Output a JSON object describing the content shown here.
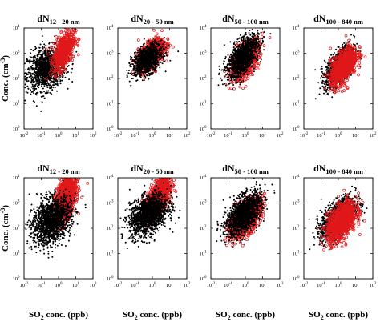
{
  "figure": {
    "ylabel_prefix": "Conc. (cm",
    "ylabel_exponent": "-3",
    "ylabel_suffix": ")",
    "xlabel_prefix": "SO",
    "xlabel_subscript": "2",
    "xlabel_suffix": " conc. (ppb)"
  },
  "colors": {
    "series_red": "#e0191b",
    "series_black": "#000000"
  },
  "chart_data": [
    {
      "type": "scatter",
      "row": 0,
      "title_main": "dN",
      "title_sub": "12 - 20 nm",
      "x_ticks": [
        "10",
        "10",
        "10",
        "10",
        "10"
      ],
      "x_tick_exponents": [
        "-2",
        "-1",
        "0",
        "1",
        "2"
      ],
      "y_ticks": [
        "10",
        "10",
        "10",
        "10",
        "10"
      ],
      "y_tick_exponents": [
        "0",
        "1",
        "2",
        "3",
        "4"
      ],
      "x_scale": "log",
      "y_scale": "log",
      "xlim": [
        0.01,
        100
      ],
      "ylim": [
        1,
        10000
      ],
      "series": [
        {
          "color": "#000000",
          "center": [
            0.2,
            250
          ],
          "spread": [
            0.55,
            0.42
          ],
          "corr": 0.25,
          "count": 1300
        },
        {
          "color": "#e0191b",
          "center": [
            2.0,
            1300
          ],
          "spread": [
            0.3,
            0.38
          ],
          "corr": 0.5,
          "count": 650
        }
      ]
    },
    {
      "type": "scatter",
      "row": 0,
      "title_main": "dN",
      "title_sub": "20 - 50 nm",
      "x_ticks": [
        "10",
        "10",
        "10",
        "10",
        "10"
      ],
      "x_tick_exponents": [
        "-2",
        "-1",
        "0",
        "1",
        "2"
      ],
      "y_ticks": [
        "10",
        "10",
        "10",
        "10",
        "10"
      ],
      "y_tick_exponents": [
        "0",
        "1",
        "2",
        "3",
        "4"
      ],
      "x_scale": "log",
      "y_scale": "log",
      "xlim": [
        0.01,
        100
      ],
      "ylim": [
        1,
        10000
      ],
      "series": [
        {
          "color": "#e0191b",
          "center": [
            0.9,
            900
          ],
          "spread": [
            0.38,
            0.3
          ],
          "corr": 0.55,
          "count": 900
        },
        {
          "color": "#000000",
          "center": [
            0.5,
            550
          ],
          "spread": [
            0.42,
            0.3
          ],
          "corr": 0.45,
          "count": 1100
        }
      ]
    },
    {
      "type": "scatter",
      "row": 0,
      "title_main": "dN",
      "title_sub": "50 - 100 nm",
      "x_ticks": [
        "10",
        "10",
        "10",
        "10",
        "10"
      ],
      "x_tick_exponents": [
        "-2",
        "-1",
        "0",
        "1",
        "2"
      ],
      "y_ticks": [
        "10",
        "10",
        "10",
        "10",
        "10"
      ],
      "y_tick_exponents": [
        "0",
        "1",
        "2",
        "3",
        "4"
      ],
      "x_scale": "log",
      "y_scale": "log",
      "xlim": [
        0.01,
        100
      ],
      "ylim": [
        1,
        10000
      ],
      "series": [
        {
          "color": "#e0191b",
          "center": [
            1.0,
            500
          ],
          "spread": [
            0.4,
            0.38
          ],
          "corr": 0.6,
          "count": 800
        },
        {
          "color": "#000000",
          "center": [
            0.7,
            700
          ],
          "spread": [
            0.45,
            0.42
          ],
          "corr": 0.6,
          "count": 1300
        }
      ]
    },
    {
      "type": "scatter",
      "row": 0,
      "title_main": "dN",
      "title_sub": "100 - 840 nm",
      "x_ticks": [
        "10",
        "10",
        "10",
        "10",
        "10"
      ],
      "x_tick_exponents": [
        "-2",
        "-1",
        "0",
        "1",
        "2"
      ],
      "y_ticks": [
        "10",
        "10",
        "10",
        "10",
        "10"
      ],
      "y_tick_exponents": [
        "0",
        "1",
        "2",
        "3",
        "4"
      ],
      "x_scale": "log",
      "y_scale": "log",
      "xlim": [
        0.01,
        100
      ],
      "ylim": [
        1,
        10000
      ],
      "series": [
        {
          "color": "#000000",
          "center": [
            1.2,
            300
          ],
          "spread": [
            0.42,
            0.4
          ],
          "corr": 0.6,
          "count": 1200
        },
        {
          "color": "#e0191b",
          "center": [
            2.0,
            300
          ],
          "spread": [
            0.38,
            0.38
          ],
          "corr": 0.55,
          "count": 800
        }
      ]
    },
    {
      "type": "scatter",
      "row": 1,
      "title_main": "dN",
      "title_sub": "12 - 20 nm",
      "x_ticks": [
        "10",
        "10",
        "10",
        "10",
        "10"
      ],
      "x_tick_exponents": [
        "-2",
        "-1",
        "0",
        "1",
        "2"
      ],
      "y_ticks": [
        "10",
        "10",
        "10",
        "10",
        "10"
      ],
      "y_tick_exponents": [
        "0",
        "1",
        "2",
        "3",
        "4"
      ],
      "x_scale": "log",
      "y_scale": "log",
      "xlim": [
        0.01,
        100
      ],
      "ylim": [
        1,
        10000
      ],
      "series": [
        {
          "color": "#e0191b",
          "center": [
            2.5,
            1500
          ],
          "spread": [
            0.3,
            0.45
          ],
          "corr": 0.5,
          "count": 1200
        },
        {
          "color": "#000000",
          "center": [
            0.4,
            200
          ],
          "spread": [
            0.55,
            0.45
          ],
          "corr": 0.3,
          "count": 1700
        }
      ]
    },
    {
      "type": "scatter",
      "row": 1,
      "title_main": "dN",
      "title_sub": "20 - 50 nm",
      "x_ticks": [
        "10",
        "10",
        "10",
        "10",
        "10"
      ],
      "x_tick_exponents": [
        "-2",
        "-1",
        "0",
        "1",
        "2"
      ],
      "y_ticks": [
        "10",
        "10",
        "10",
        "10",
        "10"
      ],
      "y_tick_exponents": [
        "0",
        "1",
        "2",
        "3",
        "4"
      ],
      "x_scale": "log",
      "y_scale": "log",
      "xlim": [
        0.01,
        100
      ],
      "ylim": [
        1,
        10000
      ],
      "series": [
        {
          "color": "#e0191b",
          "center": [
            2.0,
            1500
          ],
          "spread": [
            0.35,
            0.38
          ],
          "corr": 0.6,
          "count": 1200
        },
        {
          "color": "#000000",
          "center": [
            0.6,
            350
          ],
          "spread": [
            0.55,
            0.4
          ],
          "corr": 0.4,
          "count": 1700
        }
      ]
    },
    {
      "type": "scatter",
      "row": 1,
      "title_main": "dN",
      "title_sub": "50 - 100 nm",
      "x_ticks": [
        "10",
        "10",
        "10",
        "10",
        "10"
      ],
      "x_tick_exponents": [
        "-2",
        "-1",
        "0",
        "1",
        "2"
      ],
      "y_ticks": [
        "10",
        "10",
        "10",
        "10",
        "10"
      ],
      "y_tick_exponents": [
        "0",
        "1",
        "2",
        "3",
        "4"
      ],
      "x_scale": "log",
      "y_scale": "log",
      "xlim": [
        0.01,
        100
      ],
      "ylim": [
        1,
        10000
      ],
      "series": [
        {
          "color": "#e0191b",
          "center": [
            1.0,
            250
          ],
          "spread": [
            0.45,
            0.38
          ],
          "corr": 0.6,
          "count": 1000
        },
        {
          "color": "#000000",
          "center": [
            0.8,
            350
          ],
          "spread": [
            0.5,
            0.42
          ],
          "corr": 0.55,
          "count": 1600
        }
      ]
    },
    {
      "type": "scatter",
      "row": 1,
      "title_main": "dN",
      "title_sub": "100 - 840 nm",
      "x_ticks": [
        "10",
        "10",
        "10",
        "10",
        "10"
      ],
      "x_tick_exponents": [
        "-2",
        "-1",
        "0",
        "1",
        "2"
      ],
      "y_ticks": [
        "10",
        "10",
        "10",
        "10",
        "10"
      ],
      "y_tick_exponents": [
        "0",
        "1",
        "2",
        "3",
        "4"
      ],
      "x_scale": "log",
      "y_scale": "log",
      "xlim": [
        0.01,
        100
      ],
      "ylim": [
        1,
        10000
      ],
      "series": [
        {
          "color": "#000000",
          "center": [
            1.0,
            250
          ],
          "spread": [
            0.5,
            0.4
          ],
          "corr": 0.55,
          "count": 1500
        },
        {
          "color": "#e0191b",
          "center": [
            1.5,
            180
          ],
          "spread": [
            0.42,
            0.38
          ],
          "corr": 0.5,
          "count": 1000
        }
      ]
    }
  ]
}
